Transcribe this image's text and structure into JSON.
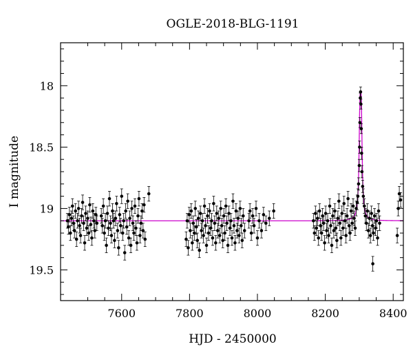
{
  "chart_data": {
    "type": "scatter",
    "title": "OGLE-2018-BLG-1191",
    "xlabel": "HJD - 2450000",
    "ylabel": "I magnitude",
    "xlim": [
      7420,
      8430
    ],
    "ylim": [
      19.75,
      17.65
    ],
    "y_inverted": true,
    "xticks": [
      7600,
      7800,
      8000,
      8200,
      8400
    ],
    "yticks": [
      18,
      18.5,
      19,
      19.5
    ],
    "grid": false,
    "colors": {
      "data": "#000000",
      "model": "#cc00cc"
    },
    "baseline_magnitude": 19.1,
    "series": [
      {
        "type": "scatter",
        "error_bars": true,
        "points": [
          [
            7440,
            19.1,
            0.06
          ],
          [
            7443,
            19.15,
            0.06
          ],
          [
            7446,
            19.05,
            0.06
          ],
          [
            7449,
            19.2,
            0.06
          ],
          [
            7452,
            19.08,
            0.06
          ],
          [
            7455,
            18.98,
            0.06
          ],
          [
            7458,
            19.12,
            0.06
          ],
          [
            7461,
            19.18,
            0.06
          ],
          [
            7464,
            19.02,
            0.06
          ],
          [
            7467,
            19.25,
            0.06
          ],
          [
            7470,
            19.1,
            0.06
          ],
          [
            7473,
            19.0,
            0.06
          ],
          [
            7476,
            19.14,
            0.06
          ],
          [
            7479,
            19.22,
            0.06
          ],
          [
            7482,
            19.06,
            0.06
          ],
          [
            7485,
            18.95,
            0.06
          ],
          [
            7488,
            19.12,
            0.06
          ],
          [
            7491,
            19.28,
            0.06
          ],
          [
            7494,
            19.04,
            0.06
          ],
          [
            7497,
            19.16,
            0.06
          ],
          [
            7500,
            19.08,
            0.06
          ],
          [
            7503,
            19.2,
            0.06
          ],
          [
            7506,
            18.97,
            0.06
          ],
          [
            7509,
            19.13,
            0.06
          ],
          [
            7512,
            19.24,
            0.06
          ],
          [
            7515,
            19.02,
            0.06
          ],
          [
            7518,
            19.1,
            0.06
          ],
          [
            7521,
            19.18,
            0.06
          ],
          [
            7524,
            19.05,
            0.06
          ],
          [
            7527,
            19.12,
            0.06
          ],
          [
            7540,
            19.06,
            0.06
          ],
          [
            7543,
            19.14,
            0.06
          ],
          [
            7546,
            18.98,
            0.06
          ],
          [
            7549,
            19.2,
            0.06
          ],
          [
            7552,
            19.1,
            0.06
          ],
          [
            7555,
            19.3,
            0.06
          ],
          [
            7558,
            19.04,
            0.06
          ],
          [
            7561,
            19.16,
            0.06
          ],
          [
            7564,
            18.92,
            0.06
          ],
          [
            7567,
            19.12,
            0.06
          ],
          [
            7570,
            19.22,
            0.06
          ],
          [
            7573,
            19.02,
            0.06
          ],
          [
            7576,
            19.1,
            0.06
          ],
          [
            7579,
            19.26,
            0.06
          ],
          [
            7582,
            19.08,
            0.06
          ],
          [
            7585,
            18.96,
            0.06
          ],
          [
            7588,
            19.18,
            0.06
          ],
          [
            7591,
            19.32,
            0.06
          ],
          [
            7594,
            19.05,
            0.06
          ],
          [
            7597,
            19.14,
            0.06
          ],
          [
            7600,
            18.9,
            0.06
          ],
          [
            7603,
            19.2,
            0.06
          ],
          [
            7606,
            19.1,
            0.06
          ],
          [
            7609,
            19.36,
            0.06
          ],
          [
            7612,
            19.02,
            0.06
          ],
          [
            7615,
            19.15,
            0.06
          ],
          [
            7618,
            18.94,
            0.06
          ],
          [
            7621,
            19.24,
            0.06
          ],
          [
            7624,
            19.08,
            0.06
          ],
          [
            7627,
            19.3,
            0.06
          ],
          [
            7630,
            19.0,
            0.06
          ],
          [
            7633,
            19.12,
            0.06
          ],
          [
            7636,
            19.2,
            0.06
          ],
          [
            7639,
            18.98,
            0.06
          ],
          [
            7642,
            19.16,
            0.06
          ],
          [
            7645,
            19.28,
            0.06
          ],
          [
            7648,
            19.06,
            0.06
          ],
          [
            7651,
            18.92,
            0.06
          ],
          [
            7654,
            19.22,
            0.06
          ],
          [
            7657,
            19.12,
            0.06
          ],
          [
            7660,
            19.02,
            0.06
          ],
          [
            7663,
            19.18,
            0.06
          ],
          [
            7666,
            18.97,
            0.06
          ],
          [
            7669,
            19.25,
            0.06
          ],
          [
            7680,
            18.88,
            0.06
          ],
          [
            7790,
            19.25,
            0.06
          ],
          [
            7793,
            19.1,
            0.06
          ],
          [
            7796,
            19.32,
            0.06
          ],
          [
            7799,
            19.05,
            0.06
          ],
          [
            7802,
            19.18,
            0.06
          ],
          [
            7805,
            19.02,
            0.06
          ],
          [
            7808,
            19.28,
            0.06
          ],
          [
            7811,
            19.12,
            0.06
          ],
          [
            7814,
            19.2,
            0.06
          ],
          [
            7817,
            19.0,
            0.06
          ],
          [
            7820,
            19.15,
            0.06
          ],
          [
            7823,
            19.26,
            0.06
          ],
          [
            7826,
            19.08,
            0.06
          ],
          [
            7829,
            19.34,
            0.06
          ],
          [
            7832,
            19.04,
            0.06
          ],
          [
            7835,
            19.18,
            0.06
          ],
          [
            7838,
            19.1,
            0.06
          ],
          [
            7841,
            19.22,
            0.06
          ],
          [
            7844,
            18.98,
            0.06
          ],
          [
            7847,
            19.14,
            0.06
          ],
          [
            7850,
            19.3,
            0.06
          ],
          [
            7853,
            19.06,
            0.06
          ],
          [
            7856,
            19.2,
            0.06
          ],
          [
            7859,
            19.02,
            0.06
          ],
          [
            7862,
            19.16,
            0.06
          ],
          [
            7865,
            19.1,
            0.06
          ],
          [
            7868,
            19.24,
            0.06
          ],
          [
            7871,
            18.96,
            0.06
          ],
          [
            7874,
            19.12,
            0.06
          ],
          [
            7877,
            19.28,
            0.06
          ],
          [
            7880,
            19.04,
            0.06
          ],
          [
            7883,
            19.18,
            0.06
          ],
          [
            7886,
            19.08,
            0.06
          ],
          [
            7889,
            19.22,
            0.06
          ],
          [
            7892,
            19.0,
            0.06
          ],
          [
            7895,
            19.14,
            0.06
          ],
          [
            7898,
            19.26,
            0.06
          ],
          [
            7901,
            19.06,
            0.06
          ],
          [
            7904,
            19.2,
            0.06
          ],
          [
            7907,
            18.98,
            0.06
          ],
          [
            7910,
            19.12,
            0.06
          ],
          [
            7913,
            19.3,
            0.06
          ],
          [
            7916,
            19.04,
            0.06
          ],
          [
            7919,
            19.16,
            0.06
          ],
          [
            7922,
            19.1,
            0.06
          ],
          [
            7925,
            19.24,
            0.06
          ],
          [
            7928,
            18.94,
            0.06
          ],
          [
            7931,
            19.14,
            0.06
          ],
          [
            7934,
            19.28,
            0.06
          ],
          [
            7937,
            19.02,
            0.06
          ],
          [
            7940,
            19.18,
            0.06
          ],
          [
            7943,
            19.08,
            0.06
          ],
          [
            7946,
            19.22,
            0.06
          ],
          [
            7949,
            19.0,
            0.06
          ],
          [
            7952,
            19.14,
            0.06
          ],
          [
            7955,
            19.26,
            0.06
          ],
          [
            7958,
            19.06,
            0.06
          ],
          [
            7962,
            19.18,
            0.06
          ],
          [
            7975,
            19.1,
            0.06
          ],
          [
            7978,
            19.02,
            0.06
          ],
          [
            7982,
            19.2,
            0.06
          ],
          [
            7986,
            19.06,
            0.06
          ],
          [
            7990,
            19.14,
            0.06
          ],
          [
            7996,
            19.0,
            0.06
          ],
          [
            8000,
            19.24,
            0.06
          ],
          [
            8005,
            19.1,
            0.06
          ],
          [
            8012,
            19.18,
            0.06
          ],
          [
            8018,
            19.05,
            0.06
          ],
          [
            8025,
            19.12,
            0.06
          ],
          [
            8035,
            19.08,
            0.06
          ],
          [
            8048,
            19.02,
            0.06
          ],
          [
            8165,
            19.1,
            0.06
          ],
          [
            8168,
            19.2,
            0.06
          ],
          [
            8171,
            19.04,
            0.06
          ],
          [
            8174,
            19.16,
            0.06
          ],
          [
            8177,
            19.08,
            0.06
          ],
          [
            8180,
            19.24,
            0.06
          ],
          [
            8183,
            19.02,
            0.06
          ],
          [
            8186,
            19.14,
            0.06
          ],
          [
            8189,
            19.2,
            0.06
          ],
          [
            8192,
            19.06,
            0.06
          ],
          [
            8195,
            19.12,
            0.06
          ],
          [
            8198,
            19.28,
            0.06
          ],
          [
            8201,
            19.04,
            0.06
          ],
          [
            8204,
            19.18,
            0.06
          ],
          [
            8207,
            19.1,
            0.06
          ],
          [
            8210,
            19.22,
            0.06
          ],
          [
            8213,
            18.98,
            0.06
          ],
          [
            8216,
            19.14,
            0.06
          ],
          [
            8219,
            19.3,
            0.06
          ],
          [
            8222,
            19.06,
            0.06
          ],
          [
            8225,
            19.18,
            0.06
          ],
          [
            8228,
            19.02,
            0.06
          ],
          [
            8231,
            19.16,
            0.06
          ],
          [
            8234,
            19.26,
            0.06
          ],
          [
            8237,
            19.08,
            0.06
          ],
          [
            8240,
            18.94,
            0.06
          ],
          [
            8243,
            19.12,
            0.06
          ],
          [
            8246,
            19.24,
            0.06
          ],
          [
            8249,
            19.04,
            0.06
          ],
          [
            8252,
            19.16,
            0.06
          ],
          [
            8255,
            18.96,
            0.06
          ],
          [
            8258,
            19.1,
            0.06
          ],
          [
            8261,
            19.22,
            0.06
          ],
          [
            8264,
            19.06,
            0.06
          ],
          [
            8267,
            18.92,
            0.06
          ],
          [
            8270,
            19.14,
            0.06
          ],
          [
            8273,
            19.2,
            0.06
          ],
          [
            8276,
            19.02,
            0.06
          ],
          [
            8279,
            19.12,
            0.06
          ],
          [
            8282,
            18.98,
            0.06
          ],
          [
            8285,
            19.08,
            0.06
          ],
          [
            8288,
            19.16,
            0.06
          ],
          [
            8291,
            19.0,
            0.06
          ],
          [
            8294,
            18.95,
            0.06
          ],
          [
            8296,
            18.9,
            0.06
          ],
          [
            8298,
            18.8,
            0.05
          ],
          [
            8300,
            18.65,
            0.05
          ],
          [
            8301,
            18.5,
            0.05
          ],
          [
            8302,
            18.3,
            0.04
          ],
          [
            8303,
            18.1,
            0.04
          ],
          [
            8304,
            18.05,
            0.04
          ],
          [
            8305,
            18.15,
            0.04
          ],
          [
            8306,
            18.35,
            0.04
          ],
          [
            8307,
            18.55,
            0.05
          ],
          [
            8308,
            18.7,
            0.05
          ],
          [
            8310,
            18.82,
            0.05
          ],
          [
            8312,
            18.9,
            0.06
          ],
          [
            8315,
            18.98,
            0.06
          ],
          [
            8318,
            19.06,
            0.06
          ],
          [
            8321,
            19.12,
            0.06
          ],
          [
            8324,
            19.02,
            0.06
          ],
          [
            8327,
            19.18,
            0.06
          ],
          [
            8330,
            19.08,
            0.06
          ],
          [
            8333,
            19.22,
            0.06
          ],
          [
            8336,
            19.04,
            0.06
          ],
          [
            8339,
            19.14,
            0.06
          ],
          [
            8342,
            19.2,
            0.06
          ],
          [
            8345,
            19.06,
            0.06
          ],
          [
            8348,
            19.16,
            0.06
          ],
          [
            8351,
            19.1,
            0.06
          ],
          [
            8354,
            19.24,
            0.06
          ],
          [
            8357,
            19.02,
            0.06
          ],
          [
            8360,
            19.12,
            0.06
          ],
          [
            8340,
            19.45,
            0.06
          ],
          [
            8412,
            19.22,
            0.06
          ],
          [
            8415,
            19.0,
            0.06
          ],
          [
            8418,
            18.88,
            0.06
          ],
          [
            8422,
            18.93,
            0.06
          ]
        ]
      },
      {
        "type": "line",
        "note": "model"
      }
    ]
  }
}
